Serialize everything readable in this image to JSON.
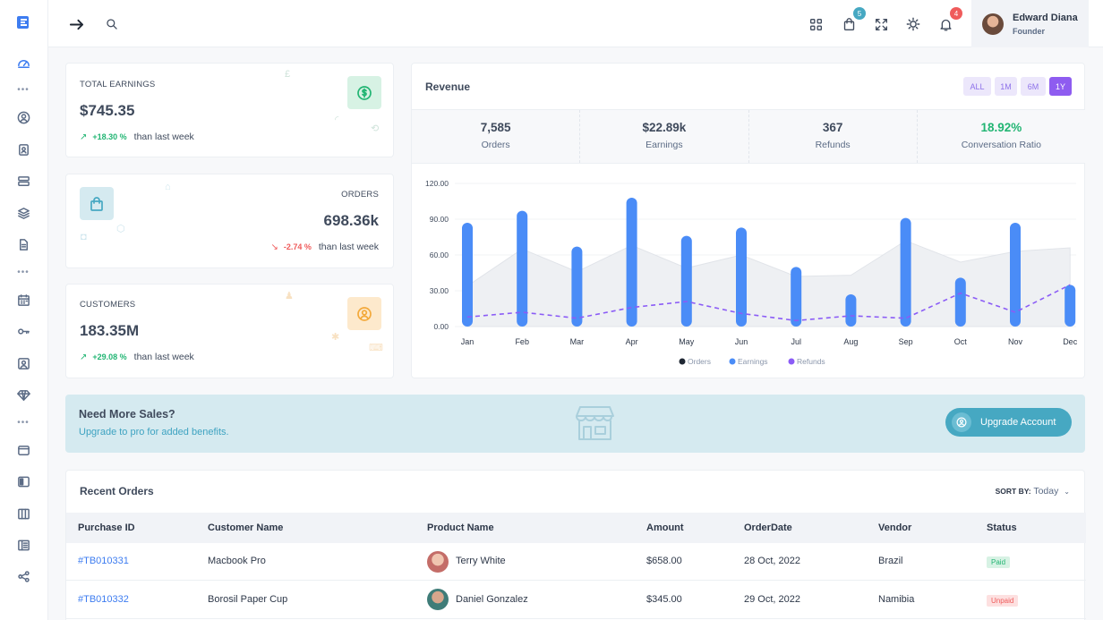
{
  "topbar": {
    "cart_badge": "5",
    "notif_badge": "4",
    "user": {
      "name": "Edward Diana",
      "role": "Founder"
    }
  },
  "stats": {
    "earnings": {
      "label": "TOTAL EARNINGS",
      "value": "$745.35",
      "change": "+18.30 %",
      "sub": "than last week",
      "up": true
    },
    "orders": {
      "label": "ORDERS",
      "value": "698.36k",
      "change": "-2.74 %",
      "sub": "than last week",
      "up": false
    },
    "customers": {
      "label": "CUSTOMERS",
      "value": "183.35M",
      "change": "+29.08 %",
      "sub": "than last week",
      "up": true
    }
  },
  "revenue": {
    "title": "Revenue",
    "ranges": [
      "ALL",
      "1M",
      "6M",
      "1Y"
    ],
    "active_range": "1Y",
    "summary": [
      {
        "value": "7,585",
        "label": "Orders"
      },
      {
        "value": "$22.89k",
        "label": "Earnings"
      },
      {
        "value": "367",
        "label": "Refunds"
      },
      {
        "value": "18.92%",
        "label": "Conversation Ratio"
      }
    ]
  },
  "chart_data": {
    "type": "bar",
    "categories": [
      "Jan",
      "Feb",
      "Mar",
      "Apr",
      "May",
      "Jun",
      "Jul",
      "Aug",
      "Sep",
      "Oct",
      "Nov",
      "Dec"
    ],
    "ylim": [
      0,
      120
    ],
    "yticks": [
      "0.00",
      "30.00",
      "60.00",
      "90.00",
      "120.00"
    ],
    "series": [
      {
        "name": "Orders",
        "type": "area",
        "values": [
          34,
          65,
          46,
          68,
          49,
          60,
          42,
          43,
          72,
          54,
          63,
          66
        ],
        "color": "#d9dde3"
      },
      {
        "name": "Earnings",
        "type": "bar",
        "values": [
          87,
          97,
          67,
          108,
          76,
          83,
          50,
          27,
          91,
          41,
          87,
          35
        ],
        "color": "#4a8cf7"
      },
      {
        "name": "Refunds",
        "type": "line",
        "values": [
          8,
          12,
          7,
          16,
          21,
          11,
          5,
          9,
          7,
          28,
          12,
          35
        ],
        "color": "#8b5cf6"
      }
    ]
  },
  "banner": {
    "title": "Need More Sales?",
    "subtitle": "Upgrade to pro for added benefits.",
    "button": "Upgrade Account"
  },
  "recent_orders": {
    "title": "Recent Orders",
    "sort_label": "SORT BY:",
    "sort_value": "Today",
    "columns": [
      "Purchase ID",
      "Customer Name",
      "Product Name",
      "Amount",
      "OrderDate",
      "Vendor",
      "Status"
    ],
    "rows": [
      {
        "id": "#TB010331",
        "customer": "Macbook Pro",
        "product": "Terry White",
        "amount": "$658.00",
        "date": "28 Oct, 2022",
        "vendor": "Brazil",
        "status": "Paid"
      },
      {
        "id": "#TB010332",
        "customer": "Borosil Paper Cup",
        "product": "Daniel Gonzalez",
        "amount": "$345.00",
        "date": "29 Oct, 2022",
        "vendor": "Namibia",
        "status": "Unpaid"
      }
    ]
  },
  "colors": {
    "accent": "#8e5cf0",
    "link": "#3d7cf0",
    "up": "#22b573",
    "down": "#ef5b5b",
    "banner_btn": "#46a8c2"
  }
}
